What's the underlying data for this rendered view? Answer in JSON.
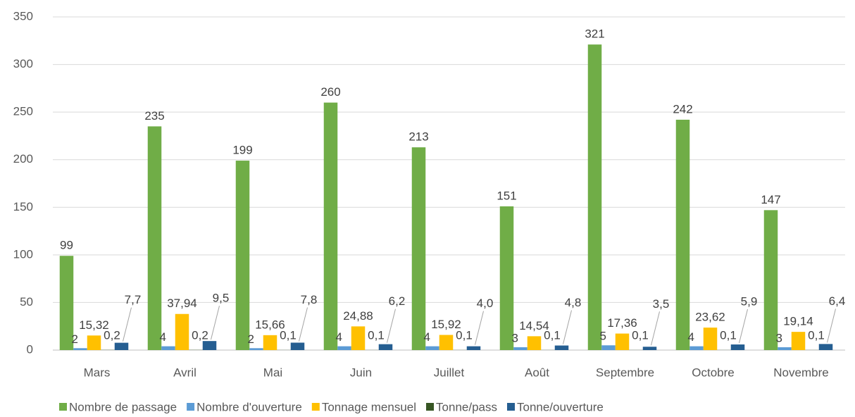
{
  "chart_data": {
    "type": "bar",
    "categories": [
      "Mars",
      "Avril",
      "Mai",
      "Juin",
      "Juillet",
      "Août",
      "Septembre",
      "Octobre",
      "Novembre"
    ],
    "series": [
      {
        "name": "Nombre de passage",
        "color": "#70ad47",
        "values": [
          99,
          235,
          199,
          260,
          213,
          151,
          321,
          242,
          147
        ]
      },
      {
        "name": "Nombre d'ouverture",
        "color": "#5b9bd5",
        "values": [
          2,
          4,
          2,
          4,
          4,
          3,
          5,
          4,
          3
        ]
      },
      {
        "name": "Tonnage mensuel",
        "color": "#ffc000",
        "values": [
          15.32,
          37.94,
          15.66,
          24.88,
          15.92,
          14.54,
          17.36,
          23.62,
          19.14
        ],
        "value_labels": [
          "15,32",
          "37,94",
          "15,66",
          "24,88",
          "15,92",
          "14,54",
          "17,36",
          "23,62",
          "19,14"
        ]
      },
      {
        "name": "Tonne/pass",
        "color": "#375623",
        "values": [
          0.2,
          0.2,
          0.1,
          0.1,
          0.1,
          0.1,
          0.1,
          0.1,
          0.1
        ],
        "value_labels": [
          "0,2",
          "0,2",
          "0,1",
          "0,1",
          "0,1",
          "0,1",
          "0,1",
          "0,1",
          "0,1"
        ]
      },
      {
        "name": "Tonne/ouverture",
        "color": "#255e91",
        "values": [
          7.7,
          9.5,
          7.8,
          6.2,
          4.0,
          4.8,
          3.5,
          5.9,
          6.4
        ],
        "value_labels": [
          "7,7",
          "9,5",
          "7,8",
          "6,2",
          "4,0",
          "4,8",
          "3,5",
          "5,9",
          "6,4"
        ]
      }
    ],
    "ylim": [
      0,
      350
    ],
    "yticks": [
      0,
      50,
      100,
      150,
      200,
      250,
      300,
      350
    ],
    "grid": true,
    "legend": "bottom"
  }
}
